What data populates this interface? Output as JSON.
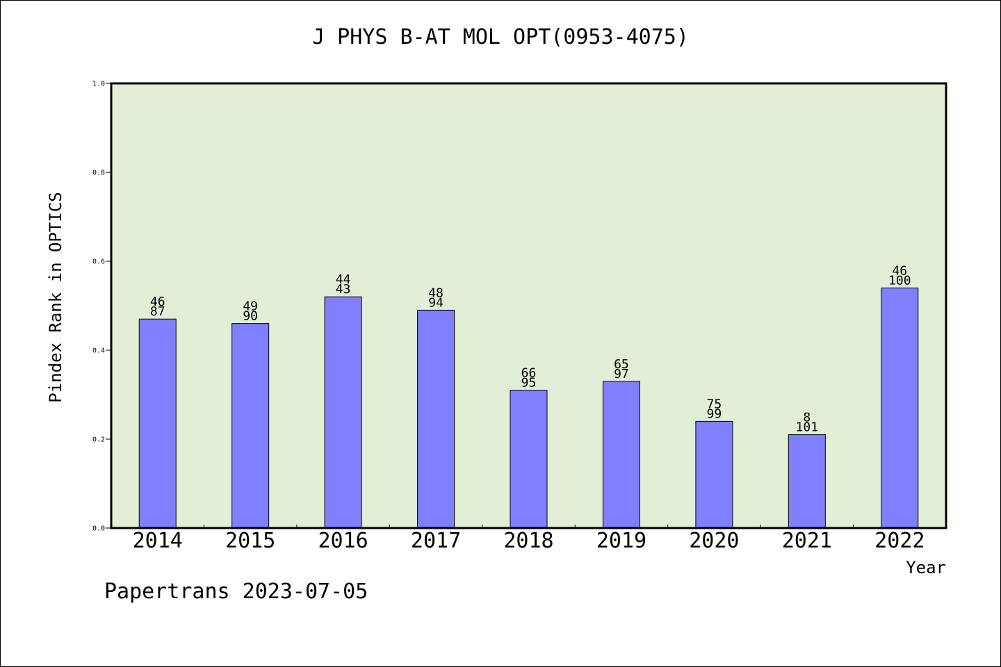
{
  "chart_data": {
    "type": "bar",
    "title": "J PHYS B-AT MOL OPT(0953-4075)",
    "xlabel": "Year",
    "ylabel": "Pindex Rank in OPTICS",
    "categories": [
      "2014",
      "2015",
      "2016",
      "2017",
      "2018",
      "2019",
      "2020",
      "2021",
      "2022"
    ],
    "values": [
      0.47,
      0.46,
      0.52,
      0.49,
      0.31,
      0.33,
      0.24,
      0.21,
      0.54
    ],
    "bar_labels_top": [
      "46",
      "49",
      "44",
      "48",
      "66",
      "65",
      "75",
      "8",
      "46"
    ],
    "bar_labels_bottom": [
      "87",
      "90",
      "43",
      "94",
      "95",
      "97",
      "99",
      "101",
      "100"
    ],
    "ylim": [
      0,
      1.0
    ],
    "yticks": [
      "0.0",
      "0.2",
      "0.4",
      "0.6",
      "0.8",
      "1.0"
    ],
    "plot_background": "#e2efd6",
    "bar_color": "#8080ff",
    "grid": false,
    "legend": "none"
  },
  "footer": {
    "text": "Papertrans 2023-07-05"
  }
}
